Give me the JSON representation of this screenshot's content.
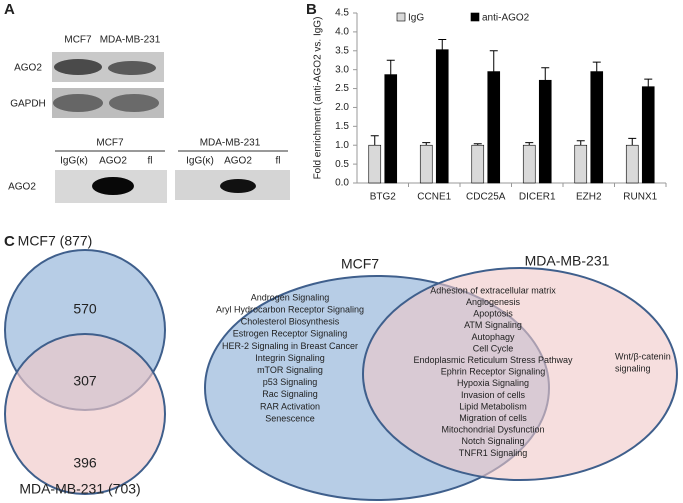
{
  "panel_a": {
    "label": "A",
    "top_cell_lines": [
      "MCF7",
      "MDA-MB-231"
    ],
    "top_rows": [
      "AGO2",
      "GAPDH"
    ],
    "ip_groups": [
      {
        "cell_line": "MCF7",
        "lanes": [
          "IgG(κ)",
          "AGO2",
          "fl"
        ]
      },
      {
        "cell_line": "MDA-MB-231",
        "lanes": [
          "IgG(κ)",
          "AGO2",
          "fl"
        ]
      }
    ],
    "ip_row": "AGO2"
  },
  "panel_b_label": "B",
  "chart_data": {
    "type": "bar",
    "y_label": "Fold enrichment (anti-AGO2 vs. IgG)",
    "categories": [
      "BTG2",
      "CCNE1",
      "CDC25A",
      "DICER1",
      "EZH2",
      "RUNX1"
    ],
    "series": [
      {
        "name": "IgG",
        "color": "#d9d9d9",
        "values": [
          1.0,
          1.0,
          1.0,
          1.0,
          1.0,
          1.0
        ],
        "errors": [
          0.25,
          0.07,
          0.04,
          0.07,
          0.12,
          0.18
        ]
      },
      {
        "name": "anti-AGO2",
        "color": "#000000",
        "values": [
          2.87,
          3.53,
          2.95,
          2.72,
          2.95,
          2.55
        ],
        "errors": [
          0.38,
          0.27,
          0.55,
          0.33,
          0.25,
          0.2
        ]
      }
    ],
    "ylim": [
      0,
      4.5
    ],
    "yticks": [
      {
        "value": 0,
        "label": "0.0"
      },
      0.5,
      {
        "value": 1,
        "label": "1.0"
      },
      1.5,
      {
        "value": 2,
        "label": "2.0"
      },
      2.5,
      {
        "value": 3,
        "label": "3.0"
      },
      3.5,
      {
        "value": 4,
        "label": "4.0"
      },
      4.5
    ],
    "legend": "top"
  },
  "panel_c": {
    "label": "C",
    "small_venn": {
      "top": "MCF7 (877)",
      "bottom": "MDA-MB-231 (703)",
      "counts": [
        570,
        307,
        396
      ]
    },
    "large_venn": {
      "left": "MCF7",
      "right": "MDA-MB-231",
      "mcf7_only": [
        "Androgen Signaling",
        "Aryl Hydrocarbon Receptor Signaling",
        "Cholesterol Biosynthesis",
        "Estrogen Receptor Signaling",
        "HER-2 Signaling in Breast Cancer",
        "Integrin Signaling",
        "mTOR Signaling",
        "p53 Signaling",
        "Rac Signaling",
        "RAR Activation",
        "Senescence"
      ],
      "shared": [
        "Adhesion of extracellular matrix",
        "Angiogenesis",
        "Apoptosis",
        "ATM Signaling",
        "Autophagy",
        "Cell Cycle",
        "Endoplasmic Reticulum Stress Pathway",
        "Ephrin Receptor Signaling",
        "Hypoxia Signaling",
        "Invasion of cells",
        "Lipid Metabolism",
        "Migration of cells",
        "Mitochondrial Dysfunction",
        "Notch Signaling",
        "TNFR1 Signaling"
      ],
      "mda_only": [
        "Wnt/β-catenin",
        "signaling"
      ]
    }
  }
}
